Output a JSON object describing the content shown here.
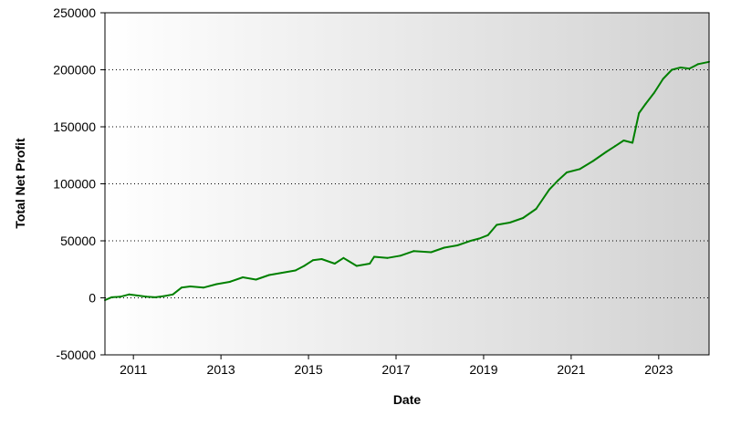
{
  "chart_data": {
    "type": "line",
    "xlabel": "Date",
    "ylabel": "Total Net Profit",
    "xlim": [
      2010.35,
      2024.15
    ],
    "ylim": [
      -50000,
      250000
    ],
    "x_ticks": [
      2011,
      2013,
      2015,
      2017,
      2019,
      2021,
      2023
    ],
    "x_tick_labels": [
      "2011",
      "2013",
      "2015",
      "2017",
      "2019",
      "2021",
      "2023"
    ],
    "y_ticks": [
      -50000,
      0,
      50000,
      100000,
      150000,
      200000,
      250000
    ],
    "y_tick_labels": [
      "-50000",
      "0",
      "50000",
      "100000",
      "150000",
      "200000",
      "250000"
    ],
    "grid": "horizontal dotted",
    "legend": "none",
    "colors": {
      "line": "#008000",
      "background_start": "#ffffff",
      "background_end": "#d2d2d2",
      "grid": "#000000"
    },
    "series": [
      {
        "x": [
          2010.35,
          2010.5,
          2010.7,
          2010.9,
          2011.1,
          2011.3,
          2011.5,
          2011.7,
          2011.9,
          2012.1,
          2012.3,
          2012.6,
          2012.9,
          2013.2,
          2013.5,
          2013.8,
          2014.1,
          2014.4,
          2014.7,
          2014.9,
          2015.1,
          2015.3,
          2015.6,
          2015.8,
          2016.1,
          2016.4,
          2016.5,
          2016.8,
          2017.1,
          2017.4,
          2017.8,
          2018.1,
          2018.4,
          2018.7,
          2018.9,
          2019.1,
          2019.3,
          2019.6,
          2019.9,
          2020.2,
          2020.5,
          2020.7,
          2020.9,
          2021.2,
          2021.5,
          2021.8,
          2022.0,
          2022.2,
          2022.4,
          2022.55,
          2022.7,
          2022.9,
          2023.1,
          2023.3,
          2023.5,
          2023.7,
          2023.9,
          2024.15
        ],
        "y": [
          -2000,
          500,
          1000,
          3000,
          2000,
          1000,
          500,
          1500,
          3000,
          9000,
          10000,
          9000,
          12000,
          14000,
          18000,
          16000,
          20000,
          22000,
          24000,
          28000,
          33000,
          34000,
          30000,
          35000,
          28000,
          30000,
          36000,
          35000,
          37000,
          41000,
          40000,
          44000,
          46000,
          50000,
          52000,
          55000,
          64000,
          66000,
          70000,
          78000,
          95000,
          103000,
          110000,
          113000,
          120000,
          128000,
          133000,
          138000,
          136000,
          162000,
          170000,
          180000,
          192000,
          200000,
          202000,
          201000,
          205000,
          207000
        ]
      }
    ]
  }
}
